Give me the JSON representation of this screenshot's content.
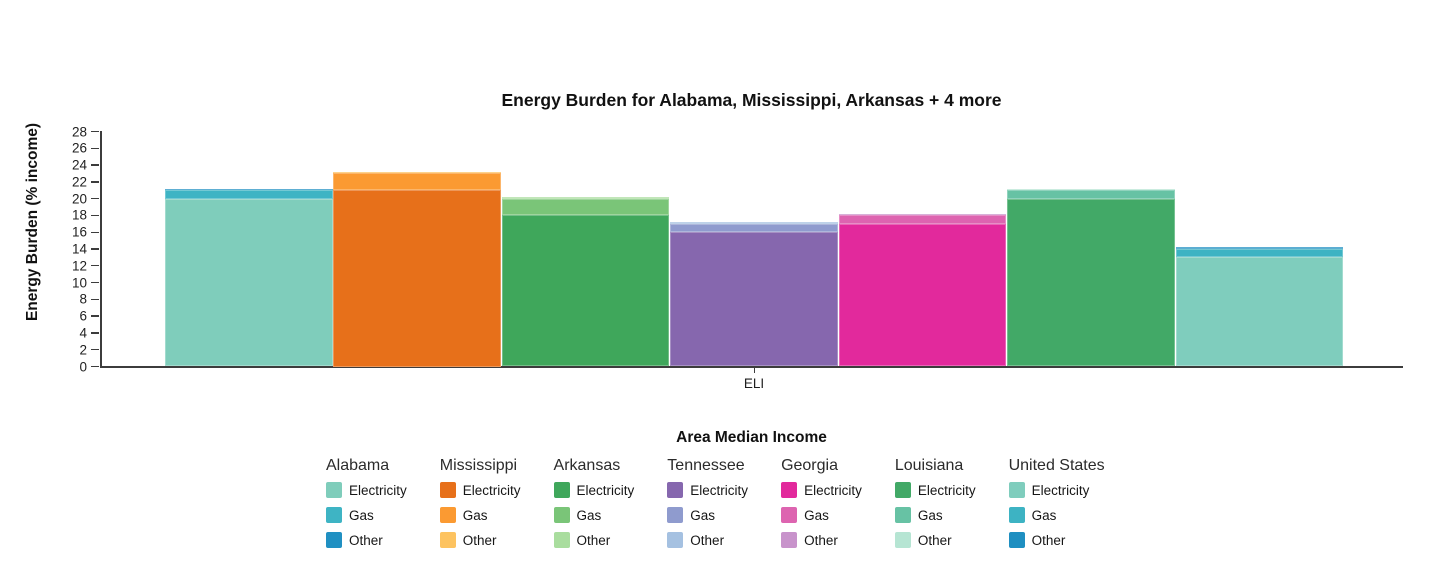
{
  "title": "Energy Burden for Alabama, Mississippi, Arkansas + 4 more",
  "y_axis": {
    "label": "Energy Burden (% income)"
  },
  "x_axis": {
    "tick_label": "ELI",
    "label": "Area Median Income"
  },
  "legend": {
    "categories": [
      "Electricity",
      "Gas",
      "Other"
    ]
  },
  "chart_data": {
    "type": "bar",
    "title": "Energy Burden for Alabama, Mississippi, Arkansas + 4 more",
    "xlabel": "Area Median Income",
    "ylabel": "Energy Burden (% income)",
    "categories": [
      "ELI"
    ],
    "ylim": [
      0,
      28
    ],
    "yticks": [
      0,
      2,
      4,
      6,
      8,
      10,
      12,
      14,
      16,
      18,
      20,
      22,
      24,
      26,
      28
    ],
    "grid": false,
    "legend_position": "bottom",
    "stack_order": [
      "electricity",
      "gas",
      "other"
    ],
    "series": [
      {
        "name": "Alabama",
        "segments": {
          "electricity": 20,
          "gas": 1,
          "other": 0.2
        },
        "total": 21.2,
        "colors": {
          "electricity": "#7fcdbb",
          "gas": "#3eb4c4",
          "other": "#2090c2"
        }
      },
      {
        "name": "Mississippi",
        "segments": {
          "electricity": 21,
          "gas": 2,
          "other": 0.2
        },
        "total": 23.2,
        "colors": {
          "electricity": "#e7701a",
          "gas": "#fb9a32",
          "other": "#fdc360"
        }
      },
      {
        "name": "Arkansas",
        "segments": {
          "electricity": 18,
          "gas": 2,
          "other": 0.2
        },
        "total": 20.2,
        "colors": {
          "electricity": "#3fa75b",
          "gas": "#7ac578",
          "other": "#a9dd9e"
        }
      },
      {
        "name": "Tennessee",
        "segments": {
          "electricity": 16,
          "gas": 1,
          "other": 0.2
        },
        "total": 17.2,
        "colors": {
          "electricity": "#8667ae",
          "gas": "#8f9bce",
          "other": "#a5c1e1"
        }
      },
      {
        "name": "Georgia",
        "segments": {
          "electricity": 17,
          "gas": 1,
          "other": 0.2
        },
        "total": 18.2,
        "colors": {
          "electricity": "#e2299c",
          "gas": "#dd64b0",
          "other": "#c893cb"
        }
      },
      {
        "name": "Louisiana",
        "segments": {
          "electricity": 20,
          "gas": 1,
          "other": 0.2
        },
        "total": 21.2,
        "colors": {
          "electricity": "#42a967",
          "gas": "#67c2a4",
          "other": "#b6e5d3"
        }
      },
      {
        "name": "United States",
        "segments": {
          "electricity": 13,
          "gas": 1,
          "other": 0.2
        },
        "total": 14.2,
        "colors": {
          "electricity": "#7fcdbd",
          "gas": "#3db3c3",
          "other": "#1e8fc1"
        }
      }
    ]
  }
}
